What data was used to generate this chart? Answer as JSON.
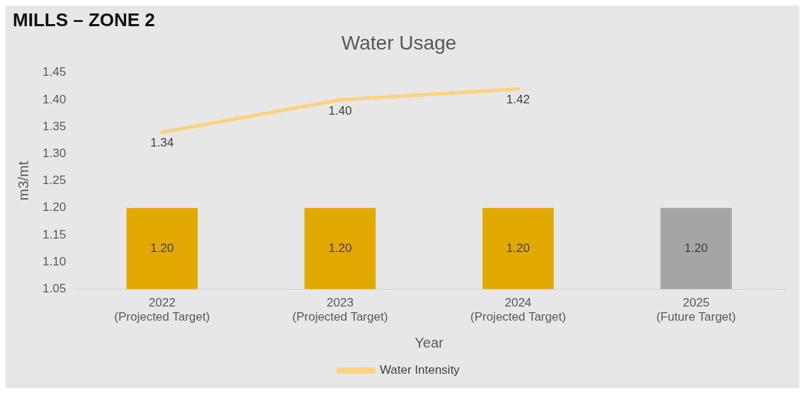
{
  "chart_data": {
    "type": "bar",
    "title": "MILLS – ZONE 2",
    "subtitle": "Water Usage",
    "xlabel": "Year",
    "ylabel": "m3/mt",
    "categories": [
      "2022\n(Projected Target)",
      "2023\n(Projected Target)",
      "2024\n(Projected Target)",
      "2025\n(Future Target)"
    ],
    "series": [
      {
        "colors": [
          "#e2a900",
          "#e2a900",
          "#e2a900",
          "#a5a5a5"
        ],
        "values": [
          1.2,
          1.2,
          1.2,
          1.2
        ],
        "value_labels": [
          "1.20",
          "1.20",
          "1.20",
          "1.20"
        ]
      },
      {
        "type": "line",
        "name": "Water Intensity",
        "color": "#ffd27f",
        "values": [
          1.34,
          1.4,
          1.42,
          null
        ],
        "value_labels": [
          "1.34",
          "1.40",
          "1.42",
          null
        ]
      }
    ],
    "ylim": [
      1.05,
      1.45
    ],
    "yticks": [
      1.05,
      {
        "value": 1.1,
        "label": "1.10"
      },
      1.15,
      {
        "value": 1.2,
        "label": "1.20"
      },
      1.25,
      {
        "value": 1.3,
        "label": "1.30"
      },
      1.35,
      {
        "value": 1.4,
        "label": "1.40"
      },
      1.45
    ],
    "grid": false,
    "legend": "bottom",
    "marker": "none",
    "line_style": "solid"
  }
}
